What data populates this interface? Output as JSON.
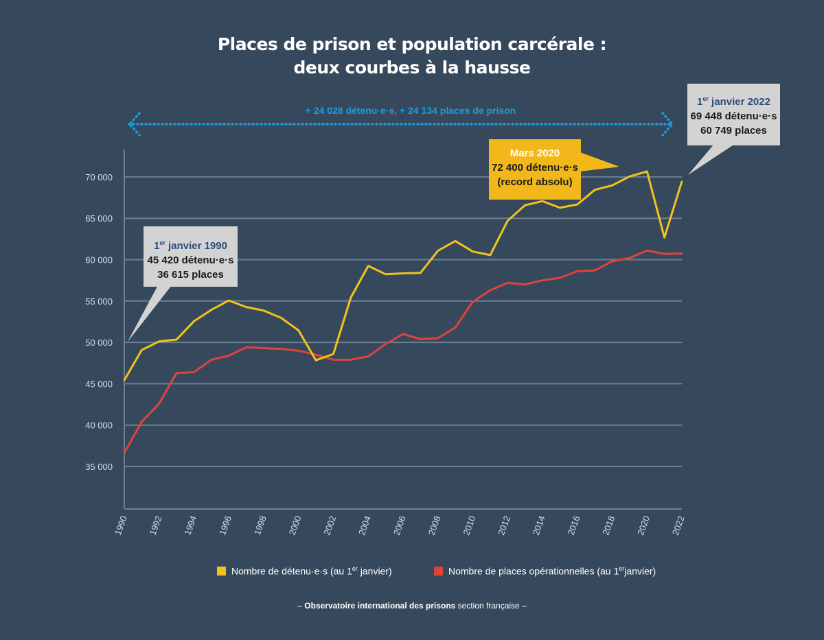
{
  "title_line1": "Places de prison et population carcérale :",
  "title_line2": "deux courbes à la hausse",
  "range_annotation": "+ 24 028 détenu·e·s, + 24 134 places de prison",
  "callouts": {
    "start": {
      "date": "1",
      "date_sup": "er",
      "date_rest": " janvier 1990",
      "line1": "45 420 détenu·e·s",
      "line2": "36 615 places"
    },
    "record": {
      "date": "Mars 2020",
      "line1": "72 400 détenu·e·s",
      "line2": "(record absolu)"
    },
    "end": {
      "date": "1",
      "date_sup": "er",
      "date_rest": " janvier 2022",
      "line1": "69 448 détenu·e·s",
      "line2": "60 749 places"
    }
  },
  "legend": {
    "detenus": {
      "text": "Nombre de détenu·e·s (au 1",
      "sup": "er",
      "end": " janvier)"
    },
    "places": {
      "text": "Nombre de places opérationnelles (au 1",
      "sup": "er",
      "end": "janvier)"
    }
  },
  "source": {
    "prefix": "– ",
    "bold": "Observatoire international des prisons",
    "rest": " section française –"
  },
  "colors": {
    "background": "#36495c",
    "detenus": "#f2c31b",
    "places": "#e0433c",
    "grid": "#6e7f8f",
    "callout_gray": "#d3d3d3",
    "callout_gold": "#f2b81b",
    "range_arrow": "#1e9bdc"
  },
  "chart_data": {
    "type": "line",
    "x": [
      1990,
      1991,
      1992,
      1993,
      1994,
      1995,
      1996,
      1997,
      1998,
      1999,
      2000,
      2001,
      2002,
      2003,
      2004,
      2005,
      2006,
      2007,
      2008,
      2009,
      2010,
      2011,
      2012,
      2013,
      2014,
      2015,
      2016,
      2017,
      2018,
      2019,
      2020,
      2021,
      2022
    ],
    "x_tick_labels": [
      "1990",
      "1992",
      "1994",
      "1996",
      "1998",
      "2000",
      "2002",
      "2004",
      "2006",
      "2008",
      "2010",
      "2012",
      "2014",
      "2016",
      "2018",
      "2020",
      "2022"
    ],
    "y_tick_labels": [
      "35 000",
      "40 000",
      "45 000",
      "50 000",
      "55 000",
      "60 000",
      "65 000",
      "70 000"
    ],
    "y_ticks": [
      35000,
      40000,
      45000,
      50000,
      55000,
      60000,
      65000,
      70000
    ],
    "ylim": [
      30000,
      75000
    ],
    "xlim": [
      1990,
      2022
    ],
    "grid": "horizontal",
    "series": [
      {
        "name": "Nombre de détenu·e·s (au 1er janvier)",
        "color": "#f2c31b",
        "values": [
          45420,
          49083,
          50115,
          50342,
          52551,
          53935,
          55062,
          54269,
          53845,
          52961,
          51441,
          47837,
          48594,
          55407,
          59246,
          58231,
          58344,
          58402,
          61076,
          62252,
          60978,
          60544,
          64711,
          66572,
          67075,
          66270,
          66678,
          68432,
          68974,
          70059,
          70651,
          62673,
          69448
        ]
      },
      {
        "name": "Nombre de places opérationnelles (au 1er janvier)",
        "color": "#e0433c",
        "values": [
          36615,
          40400,
          42600,
          46300,
          46400,
          47900,
          48400,
          49400,
          49300,
          49200,
          49000,
          48500,
          47900,
          47900,
          48300,
          49800,
          51000,
          50400,
          50500,
          51800,
          54900,
          56300,
          57200,
          57000,
          57500,
          57800,
          58600,
          58700,
          59800,
          60200,
          61100,
          60700,
          60749
        ]
      }
    ]
  }
}
